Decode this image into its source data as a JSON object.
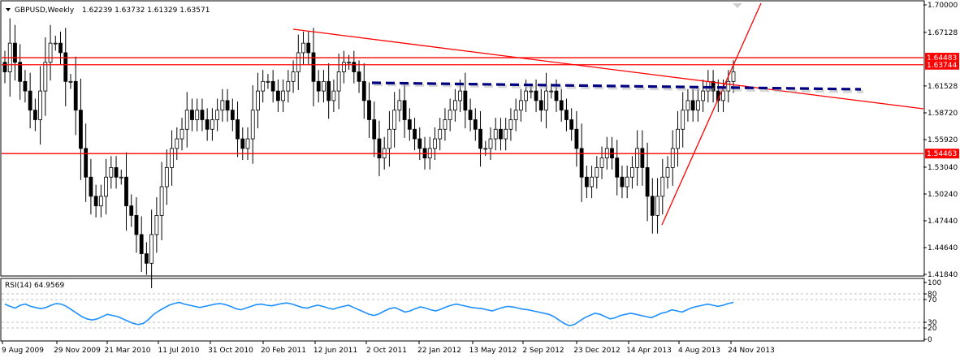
{
  "header": {
    "symbol": "GBPUSD,Weekly",
    "ohlc": "1.62239 1.63732 1.61329 1.63571"
  },
  "rsi_header": "RSI(14) 64.9569",
  "colors": {
    "background": "#ffffff",
    "candle": "#000000",
    "trend_line": "#ff0000",
    "neckline": "#000080",
    "rsi": "#1e90ff",
    "price_label_bg": "#ff0000",
    "price_label_text": "#ffffff",
    "grid_dashed": "#c0c0c0"
  },
  "chart_data": [
    {
      "type": "candlestick",
      "title": "GBPUSD,Weekly",
      "ohlc_last": [
        1.62239,
        1.63732,
        1.61329,
        1.63571
      ],
      "y_ticks": [
        1.7,
        1.67128,
        1.64483,
        1.63744,
        1.61528,
        1.5872,
        1.5592,
        1.54463,
        1.5304,
        1.5024,
        1.4744,
        1.4464,
        1.4184
      ],
      "y_tick_labels": [
        "1.70000",
        "1.67128",
        "1.64483",
        "1.63744",
        "1.61528",
        "1.58720",
        "1.55920",
        "1.54463",
        "1.53040",
        "1.50240",
        "1.47440",
        "1.44640",
        "1.41840"
      ],
      "ylim": [
        1.4184,
        1.7
      ],
      "x_tick_labels": [
        "9 Aug 2009",
        "29 Nov 2009",
        "21 Mar 2010",
        "11 Jul 2010",
        "31 Oct 2010",
        "20 Feb 2011",
        "12 Jun 2011",
        "2 Oct 2011",
        "22 Jan 2012",
        "13 May 2012",
        "2 Sep 2012",
        "23 Dec 2012",
        "14 Apr 2013",
        "4 Aug 2013",
        "24 Nov 2013"
      ],
      "horizontal_levels": [
        1.64483,
        1.63744,
        1.54463
      ],
      "highlighted_levels": [
        "1.64483",
        "1.63744",
        "1.54463"
      ],
      "trend_lines": [
        {
          "from": [
            "20 Feb 2011",
            1.675
          ],
          "to": [
            "24 Nov 2013",
            1.612
          ]
        },
        {
          "from": [
            "14 Apr 2013",
            1.471
          ],
          "to": [
            "24 Nov 2013",
            1.634
          ]
        }
      ],
      "neckline": {
        "from": [
          "2 Oct 2011",
          1.6175
        ],
        "to": [
          "24 Nov 2013",
          1.6105
        ]
      },
      "series": [
        {
          "values": [
            1.63,
            1.66,
            1.64,
            1.62,
            1.61,
            1.59,
            1.58,
            1.61,
            1.64,
            1.66,
            1.66,
            1.65,
            1.62,
            1.62,
            1.59,
            1.55,
            1.52,
            1.5,
            1.49,
            1.5,
            1.52,
            1.53,
            1.52,
            1.52,
            1.49,
            1.48,
            1.46,
            1.44,
            1.43,
            1.46,
            1.48,
            1.51,
            1.53,
            1.55,
            1.56,
            1.57,
            1.59,
            1.58,
            1.59,
            1.58,
            1.57,
            1.58,
            1.59,
            1.6,
            1.59,
            1.58,
            1.56,
            1.55,
            1.56,
            1.59,
            1.61,
            1.62,
            1.62,
            1.61,
            1.6,
            1.61,
            1.62,
            1.63,
            1.65,
            1.66,
            1.65,
            1.62,
            1.61,
            1.62,
            1.6,
            1.61,
            1.63,
            1.64,
            1.64,
            1.63,
            1.62,
            1.6,
            1.58,
            1.56,
            1.54,
            1.55,
            1.57,
            1.59,
            1.6,
            1.58,
            1.57,
            1.56,
            1.55,
            1.54,
            1.55,
            1.56,
            1.57,
            1.58,
            1.59,
            1.6,
            1.61,
            1.59,
            1.58,
            1.57,
            1.55,
            1.55,
            1.56,
            1.57,
            1.56,
            1.57,
            1.58,
            1.59,
            1.6,
            1.61,
            1.61,
            1.6,
            1.59,
            1.61,
            1.61,
            1.6,
            1.59,
            1.58,
            1.57,
            1.55,
            1.52,
            1.51,
            1.52,
            1.53,
            1.54,
            1.55,
            1.54,
            1.52,
            1.51,
            1.52,
            1.53,
            1.55,
            1.53,
            1.5,
            1.48,
            1.5,
            1.52,
            1.53,
            1.55,
            1.57,
            1.59,
            1.6,
            1.59,
            1.6,
            1.61,
            1.62,
            1.61,
            1.6,
            1.61,
            1.62,
            1.63
          ]
        }
      ]
    },
    {
      "type": "line",
      "title": "RSI(14) 64.9569",
      "y_tick_labels": [
        "100",
        "80",
        "70",
        "30",
        "20",
        "0"
      ],
      "ylim": [
        0,
        100
      ],
      "levels": [
        80,
        70,
        30,
        20
      ],
      "last_value": 64.9569,
      "series": [
        {
          "values": [
            62,
            58,
            55,
            60,
            62,
            58,
            56,
            54,
            56,
            60,
            63,
            62,
            58,
            52,
            46,
            40,
            36,
            34,
            36,
            40,
            44,
            42,
            40,
            36,
            32,
            28,
            26,
            28,
            35,
            44,
            50,
            55,
            60,
            63,
            65,
            62,
            60,
            58,
            56,
            58,
            60,
            62,
            63,
            61,
            58,
            54,
            52,
            55,
            58,
            61,
            62,
            60,
            59,
            61,
            63,
            64,
            62,
            59,
            56,
            55,
            58,
            60,
            58,
            55,
            53,
            56,
            58,
            60,
            56,
            52,
            48,
            44,
            42,
            45,
            50,
            54,
            56,
            52,
            48,
            50,
            54,
            57,
            55,
            52,
            50,
            53,
            57,
            60,
            62,
            60,
            58,
            56,
            55,
            54,
            52,
            50,
            53,
            56,
            58,
            57,
            55,
            53,
            52,
            50,
            48,
            46,
            44,
            40,
            34,
            28,
            24,
            26,
            32,
            38,
            42,
            46,
            44,
            40,
            36,
            38,
            42,
            44,
            46,
            44,
            42,
            40,
            38,
            42,
            46,
            48,
            52,
            50,
            48,
            52,
            56,
            58,
            60,
            62,
            60,
            58,
            60,
            63,
            65
          ]
        }
      ]
    }
  ]
}
